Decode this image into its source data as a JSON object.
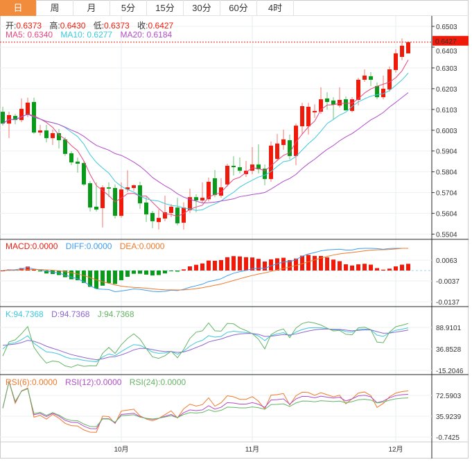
{
  "tabs": [
    "日",
    "周",
    "月",
    "5分",
    "15分",
    "30分",
    "60分",
    "4时"
  ],
  "active_tab": 0,
  "ohlc": {
    "open_label": "开:",
    "open": "0.6373",
    "high_label": "高:",
    "high": "0.6430",
    "low_label": "低:",
    "low": "0.6373",
    "close_label": "收:",
    "close": "0.6427"
  },
  "ma": {
    "ma5": "MA5: 0.6340",
    "ma10": "MA10: 0.6277",
    "ma20": "MA20: 0.6184"
  },
  "macd_legend": {
    "macd": "MACD:0.0000",
    "diff": "DIFF:0.0000",
    "dea": "DEA:0.0000"
  },
  "kdj_legend": {
    "k": "K:94.7368",
    "d": "D:94.7368",
    "j": "J:94.7368"
  },
  "rsi_legend": {
    "rsi6": "RSI(6):0.0000",
    "rsi12": "RSI(12):0.0000",
    "rsi24": "RSI(24):0.0000"
  },
  "price_ticks": [
    "0.6503",
    "0.6403",
    "0.6303",
    "0.6203",
    "0.6103",
    "0.6003",
    "0.5904",
    "0.5804",
    "0.5704",
    "0.5604",
    "0.5504"
  ],
  "current_price": "0.6427",
  "macd_ticks": [
    "0.0063",
    "-0.0037",
    "-0.0137"
  ],
  "kdj_ticks": [
    "88.9101",
    "36.8528",
    "-15.2046"
  ],
  "rsi_ticks": [
    "72.5903",
    "35.9239",
    "-0.7425"
  ],
  "x_labels": [
    {
      "label": "10月",
      "index": 19
    },
    {
      "label": "11月",
      "index": 40
    },
    {
      "label": "12月",
      "index": 63
    }
  ],
  "colors": {
    "up": "#f01a0a",
    "down": "#0a9a1a",
    "ma5": "#e8467c",
    "ma10": "#3cc8dc",
    "ma20": "#b04cc8",
    "tab": "#f08c3c"
  },
  "chart_data": {
    "type": "candlestick",
    "price_range": [
      0.5504,
      0.6503
    ],
    "open": [
      0.6092,
      0.6035,
      0.6072,
      0.6052,
      0.6076,
      0.6139,
      0.5992,
      0.6002,
      0.5965,
      0.5989,
      0.5959,
      0.5892,
      0.5852,
      0.5845,
      0.5748,
      0.5635,
      0.5628,
      0.5728,
      0.5725,
      0.5591,
      0.5718,
      0.5725,
      0.5738,
      0.5655,
      0.5605,
      0.5561,
      0.5578,
      0.5605,
      0.5631,
      0.5558,
      0.5618,
      0.5681,
      0.5665,
      0.5671,
      0.5772,
      0.5688,
      0.5742,
      0.5832,
      0.5825,
      0.5792,
      0.5808,
      0.5838,
      0.5818,
      0.5768,
      0.5865,
      0.5932,
      0.5955,
      0.5879,
      0.6022,
      0.6022,
      0.6089,
      0.6092,
      0.6156,
      0.6146,
      0.6122,
      0.6152,
      0.6096,
      0.6149,
      0.6246,
      0.6263,
      0.6216,
      0.6162,
      0.6199,
      0.6293,
      0.6356,
      0.6373
    ],
    "close": [
      0.6035,
      0.6076,
      0.6052,
      0.6106,
      0.6136,
      0.5992,
      0.6002,
      0.5965,
      0.5989,
      0.5955,
      0.5889,
      0.5848,
      0.5842,
      0.5742,
      0.5631,
      0.5621,
      0.5728,
      0.5722,
      0.5591,
      0.5718,
      0.5728,
      0.5738,
      0.5651,
      0.5598,
      0.5565,
      0.5581,
      0.5608,
      0.5635,
      0.5555,
      0.5631,
      0.5681,
      0.5665,
      0.5678,
      0.5755,
      0.5691,
      0.5728,
      0.5832,
      0.5825,
      0.5808,
      0.5808,
      0.5838,
      0.5815,
      0.5768,
      0.5929,
      0.5939,
      0.5959,
      0.5879,
      0.6025,
      0.6119,
      0.6116,
      0.6096,
      0.6152,
      0.6139,
      0.6126,
      0.6149,
      0.6099,
      0.6152,
      0.6246,
      0.6266,
      0.6246,
      0.6162,
      0.6203,
      0.6296,
      0.6373,
      0.641,
      0.6427
    ],
    "high": [
      0.6116,
      0.6092,
      0.6082,
      0.6156,
      0.616,
      0.616,
      0.6029,
      0.6029,
      0.6006,
      0.6009,
      0.5969,
      0.5902,
      0.5872,
      0.5855,
      0.5758,
      0.5752,
      0.5738,
      0.5752,
      0.5742,
      0.5752,
      0.581,
      0.5742,
      0.5755,
      0.5682,
      0.5615,
      0.5622,
      0.5688,
      0.5648,
      0.5678,
      0.5656,
      0.5722,
      0.5695,
      0.5752,
      0.5775,
      0.5812,
      0.5772,
      0.5842,
      0.5878,
      0.5872,
      0.5855,
      0.5922,
      0.5935,
      0.5838,
      0.5949,
      0.5985,
      0.6006,
      0.5982,
      0.6035,
      0.6135,
      0.6135,
      0.6128,
      0.621,
      0.6186,
      0.6162,
      0.621,
      0.6166,
      0.6162,
      0.6256,
      0.6296,
      0.6283,
      0.6233,
      0.6266,
      0.631,
      0.6393,
      0.6445,
      0.643
    ],
    "low": [
      0.6025,
      0.5965,
      0.6032,
      0.6042,
      0.6066,
      0.5985,
      0.5978,
      0.5945,
      0.5932,
      0.5915,
      0.5879,
      0.5835,
      0.5799,
      0.5735,
      0.5612,
      0.5612,
      0.5535,
      0.5682,
      0.5578,
      0.5582,
      0.5705,
      0.5712,
      0.5625,
      0.5562,
      0.5532,
      0.5525,
      0.5565,
      0.5585,
      0.5545,
      0.5525,
      0.5605,
      0.5608,
      0.5652,
      0.566,
      0.5681,
      0.5678,
      0.5732,
      0.5785,
      0.5795,
      0.5778,
      0.5792,
      0.5795,
      0.5738,
      0.5755,
      0.5855,
      0.5909,
      0.5862,
      0.5835,
      0.5985,
      0.5982,
      0.6062,
      0.6082,
      0.6102,
      0.6055,
      0.6112,
      0.6096,
      0.6089,
      0.6122,
      0.6236,
      0.6216,
      0.6152,
      0.6152,
      0.6189,
      0.628,
      0.634,
      0.6373
    ]
  }
}
